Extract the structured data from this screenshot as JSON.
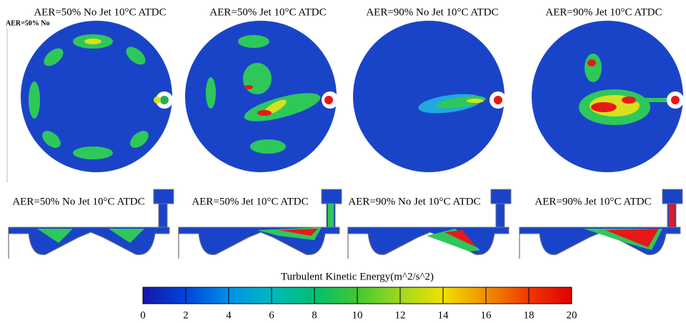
{
  "panels_top": [
    "AER=50% No Jet 10°C ATDC",
    "AER=50% Jet 10°C ATDC",
    "AER=90% No Jet 10°C ATDC",
    "AER=90%  Jet 10°C ATDC"
  ],
  "overlay_label": "AER=50% No",
  "panels_bottom": [
    "AER=50% No Jet 10°C ATDC",
    "AER=50% Jet 10°C ATDC",
    "AER=90% No Jet 10°C ATDC",
    "AER=90%  Jet 10°C ATDC"
  ],
  "colorbar": {
    "title": "Turbulent Kinetic Energy(m^2/s^2)",
    "range": [
      0,
      20
    ],
    "ticks": [
      0,
      2,
      4,
      6,
      8,
      10,
      12,
      14,
      16,
      18,
      20
    ],
    "colors": [
      "#1616a8",
      "#0044dc",
      "#0090e8",
      "#00b8c0",
      "#00c070",
      "#40c830",
      "#a0d820",
      "#f0e000",
      "#f09000",
      "#f03800",
      "#e00000"
    ]
  }
}
